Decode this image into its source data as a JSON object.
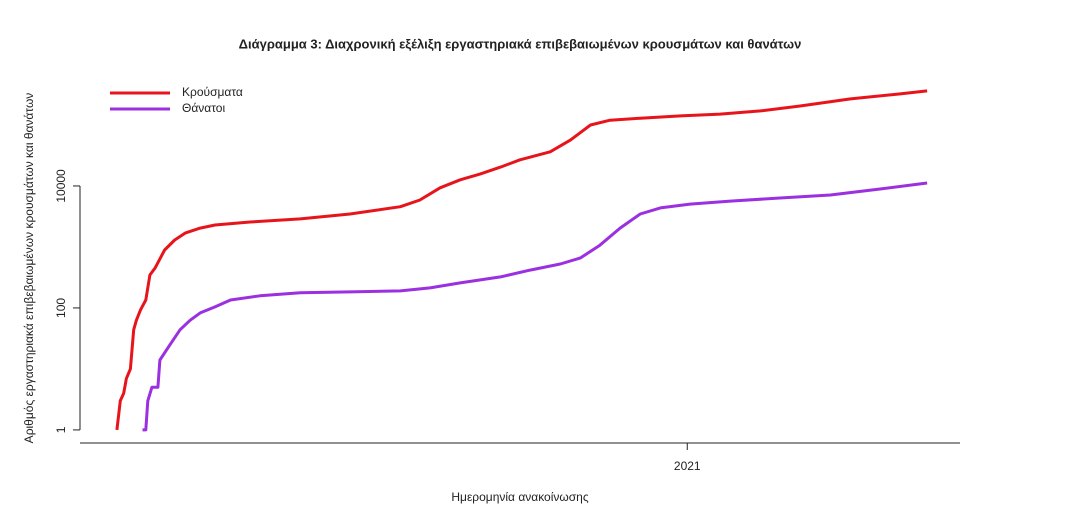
{
  "chart_data": {
    "type": "line",
    "title": "Διάγραμμα 3: Διαχρονική εξέλιξη εργαστηριακά επιβεβαιωμένων κρουσμάτων και θανάτων",
    "x_label": "Ημερομηνία ανακοίνωσης",
    "y_label": "Αριθμός εργαστηριακά επιβεβαιωμένων κρουσμάτων και θανάτων",
    "log_y": true,
    "legend": "top-left",
    "xlim": [
      2020.096,
      2021.406
    ],
    "xticks": [
      2021
    ],
    "ylim": [
      0.61,
      660000
    ],
    "yticks": [
      1,
      100,
      10000
    ],
    "series": [
      {
        "name": "Κρούσματα",
        "color": "#e8141b",
        "x": [
          2020.151,
          2020.156,
          2020.161,
          2020.165,
          2020.171,
          2020.176,
          2020.18,
          2020.186,
          2020.194,
          2020.2,
          2020.208,
          2020.222,
          2020.237,
          2020.253,
          2020.275,
          2020.297,
          2020.349,
          2020.424,
          2020.498,
          2020.573,
          2020.602,
          2020.632,
          2020.662,
          2020.692,
          2020.722,
          2020.751,
          2020.796,
          2020.826,
          2020.856,
          2020.885,
          2020.93,
          2020.99,
          2021.049,
          2021.109,
          2021.168,
          2021.243,
          2021.317,
          2021.357
        ],
        "values": [
          1,
          3,
          4,
          7,
          10,
          44,
          63,
          93,
          135,
          347,
          455,
          890,
          1300,
          1700,
          2040,
          2290,
          2570,
          2880,
          3470,
          4570,
          5890,
          9330,
          12600,
          15800,
          20400,
          26900,
          36300,
          56400,
          100000,
          120000,
          129000,
          141000,
          151000,
          170000,
          205000,
          268000,
          323000,
          362000
        ]
      },
      {
        "name": "Θάνατοι",
        "color": "#9b30e0",
        "x": [
          2020.189,
          2020.194,
          2020.197,
          2020.203,
          2020.212,
          2020.215,
          2020.23,
          2020.245,
          2020.26,
          2020.275,
          2020.297,
          2020.32,
          2020.364,
          2020.424,
          2020.498,
          2020.573,
          2020.617,
          2020.662,
          2020.722,
          2020.766,
          2020.811,
          2020.841,
          2020.87,
          2020.9,
          2020.93,
          2020.96,
          2021.004,
          2021.064,
          2021.138,
          2021.213,
          2021.287,
          2021.357
        ],
        "values": [
          1,
          1,
          3,
          5,
          5,
          14,
          25,
          44,
          63,
          83,
          104,
          135,
          158,
          178,
          183,
          190,
          213,
          257,
          323,
          417,
          525,
          661,
          1070,
          2040,
          3470,
          4370,
          5050,
          5650,
          6340,
          7100,
          8920,
          11200
        ]
      }
    ]
  }
}
